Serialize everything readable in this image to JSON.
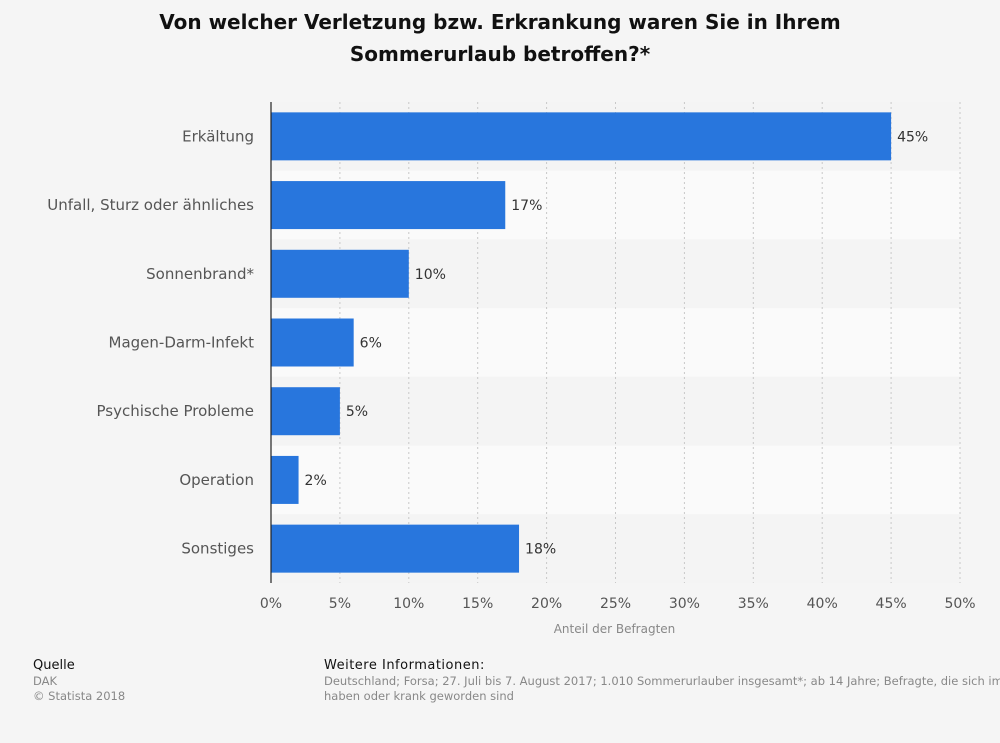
{
  "title_lines": [
    "Von welcher Verletzung bzw. Erkrankung waren Sie in Ihrem",
    "Sommerurlaub betroffen?*"
  ],
  "chart_data": {
    "type": "bar",
    "orientation": "horizontal",
    "categories": [
      "Erkältung",
      "Unfall, Sturz oder ähnliches",
      "Sonnenbrand*",
      "Magen-Darm-Infekt",
      "Psychische Probleme",
      "Operation",
      "Sonstiges"
    ],
    "values": [
      45,
      17,
      10,
      6,
      5,
      2,
      18
    ],
    "value_labels": [
      "45%",
      "17%",
      "10%",
      "6%",
      "5%",
      "2%",
      "18%"
    ],
    "xlabel": "Anteil der Befragten",
    "ylabel": "",
    "xlim": [
      0,
      50
    ],
    "x_ticks": [
      0,
      5,
      10,
      15,
      20,
      25,
      30,
      35,
      40,
      45,
      50
    ],
    "x_tick_labels": [
      "0%",
      "5%",
      "10%",
      "15%",
      "20%",
      "25%",
      "30%",
      "35%",
      "40%",
      "45%",
      "50%"
    ],
    "grid": true,
    "bar_color": "#2876dd"
  },
  "footer": {
    "source_heading": "Quelle",
    "source_lines": [
      "DAK",
      "© Statista 2018"
    ],
    "info_heading": "Weitere Informationen:",
    "info_line1": "Deutschland; Forsa; 27. Juli bis 7. August 2017; 1.010 Sommerurlauber insgesamt*; ab 14 Jahre; Befragte, die sich im Sommerurlaub verletzt",
    "info_line2": "haben oder krank geworden sind"
  }
}
